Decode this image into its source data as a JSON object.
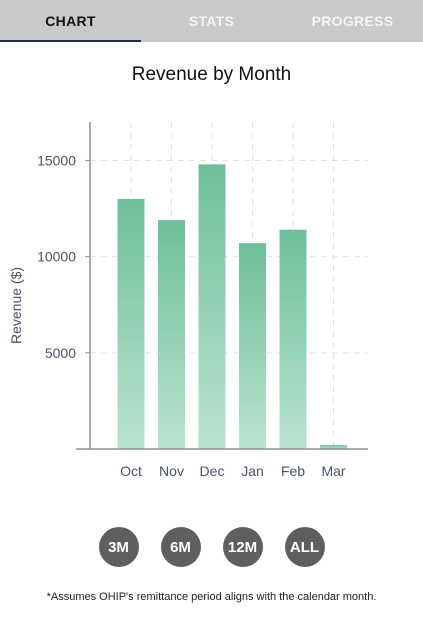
{
  "tabs": [
    {
      "label": "CHART",
      "active": true
    },
    {
      "label": "STATS",
      "active": false
    },
    {
      "label": "PROGRESS",
      "active": false
    }
  ],
  "chart_title": "Revenue by Month",
  "range_buttons": [
    "3M",
    "6M",
    "12M",
    "ALL"
  ],
  "footnote": "*Assumes OHIP's remittance period aligns with the calendar month.",
  "colors": {
    "bar_top": "#6fbf9b",
    "bar_bottom": "#b9e3d1",
    "tab_active_underline": "#1d2b4a",
    "range_button": "#5f5f5f"
  },
  "chart_data": {
    "type": "bar",
    "title": "Revenue by Month",
    "xlabel": "",
    "ylabel": "Revenue ($)",
    "categories": [
      "Oct",
      "Nov",
      "Dec",
      "Jan",
      "Feb",
      "Mar"
    ],
    "values": [
      13000,
      11900,
      14800,
      10700,
      11400,
      200
    ],
    "yticks": [
      5000,
      10000,
      15000
    ],
    "ylim": [
      0,
      17000
    ],
    "grid": true
  }
}
